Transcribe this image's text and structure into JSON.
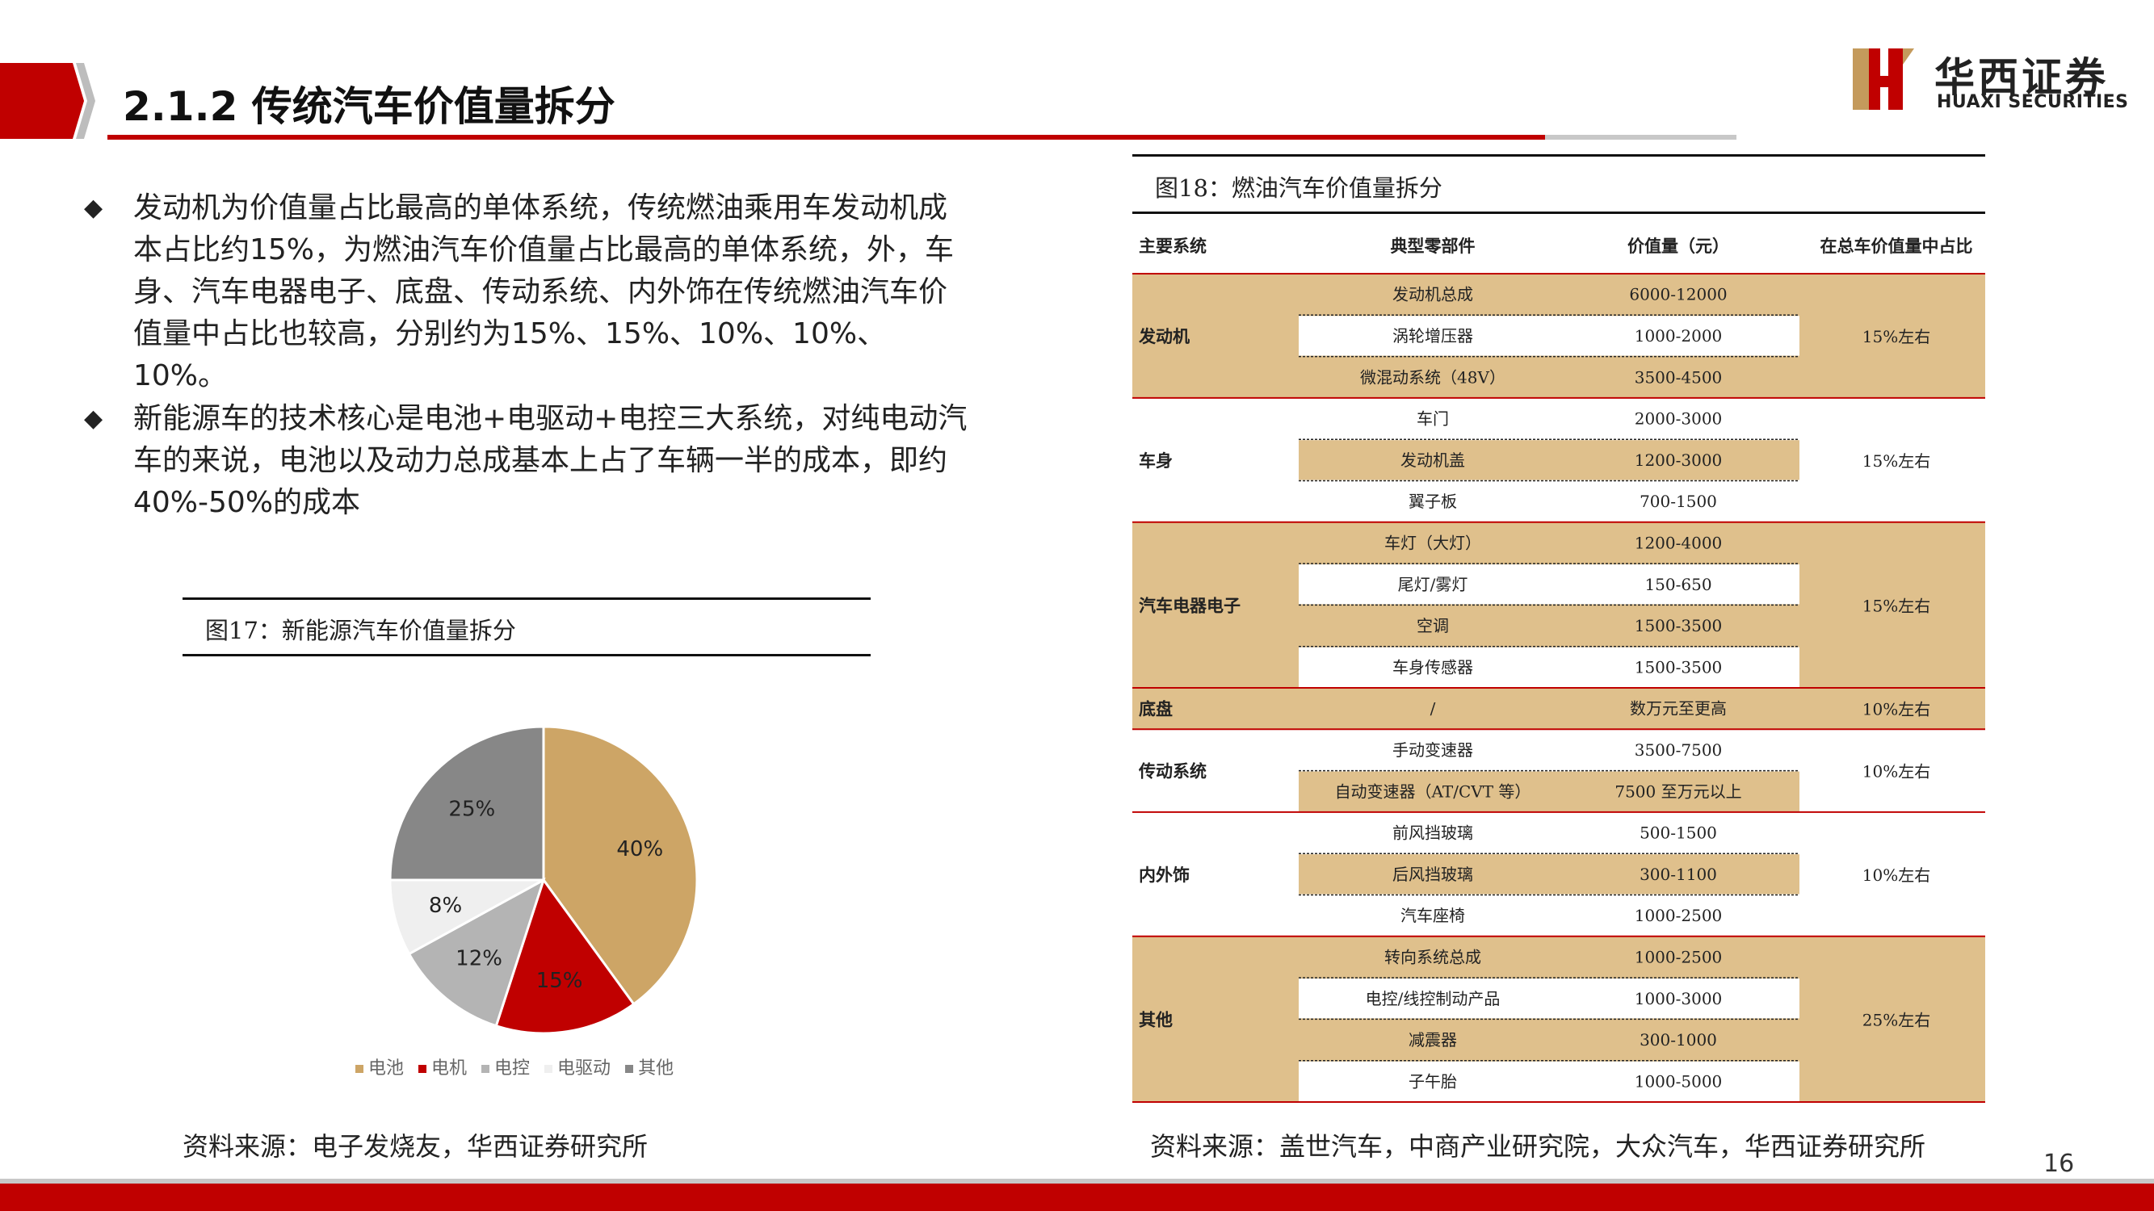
{
  "header": {
    "title": "2.1.2 传统汽车价值量拆分",
    "logo_cn": "华西证券",
    "logo_en": "HUAXI SECURITIES"
  },
  "bullets": [
    {
      "mark": "◆",
      "text": "发动机为价值量占比最高的单体系统，传统燃油乘用车发动机成本占比约15%，为燃油汽车价值量占比最高的单体系统，外，车身、汽车电器电子、底盘、传动系统、内外饰在传统燃油汽车价值量中占比也较高，分别约为15%、15%、10%、10%、10%。"
    },
    {
      "mark": "◆",
      "text": "新能源车的技术核心是电池+电驱动+电控三大系统，对纯电动汽车的来说，电池以及动力总成基本上占了车辆一半的成本，即约40%-50%的成本"
    }
  ],
  "figure17": {
    "caption": "图17：新能源汽车价值量拆分",
    "source": "资料来源：电子发烧友，华西证券研究所"
  },
  "chart_data": {
    "type": "pie",
    "categories": [
      "电池",
      "电机",
      "电控",
      "电驱动",
      "其他"
    ],
    "values": [
      40,
      15,
      12,
      8,
      25
    ],
    "data_labels": [
      "40%",
      "15%",
      "12%",
      "8%",
      "25%"
    ],
    "colors": [
      "#cda566",
      "#c00000",
      "#b4b4b4",
      "#efefef",
      "#878787"
    ],
    "legend_position": "bottom"
  },
  "figure18": {
    "caption": "图18：燃油汽车价值量拆分",
    "source": "资料来源：盖世汽车，中商产业研究院，大众汽车，华西证券研究所",
    "headers": [
      "主要系统",
      "典型零部件",
      "价值量（元）",
      "在总车价值量中占比"
    ],
    "groups": [
      {
        "system": "发动机",
        "share": "15%左右",
        "shaded": true,
        "rows": [
          [
            "发动机总成",
            "6000-12000"
          ],
          [
            "涡轮增压器",
            "1000-2000"
          ],
          [
            "微混动系统（48V）",
            "3500-4500"
          ]
        ]
      },
      {
        "system": "车身",
        "share": "15%左右",
        "shaded": false,
        "rows": [
          [
            "车门",
            "2000-3000"
          ],
          [
            "发动机盖",
            "1200-3000"
          ],
          [
            "翼子板",
            "700-1500"
          ]
        ]
      },
      {
        "system": "汽车电器电子",
        "share": "15%左右",
        "shaded": true,
        "rows": [
          [
            "车灯（大灯）",
            "1200-4000"
          ],
          [
            "尾灯/雾灯",
            "150-650"
          ],
          [
            "空调",
            "1500-3500"
          ],
          [
            "车身传感器",
            "1500-3500"
          ]
        ]
      },
      {
        "system": "底盘",
        "share": "10%左右",
        "shaded": true,
        "rows": [
          [
            "/",
            "数万元至更高"
          ]
        ]
      },
      {
        "system": "传动系统",
        "share": "10%左右",
        "shaded": false,
        "rows": [
          [
            "手动变速器",
            "3500-7500"
          ],
          [
            "自动变速器（AT/CVT 等）",
            "7500 至万元以上"
          ]
        ]
      },
      {
        "system": "内外饰",
        "share": "10%左右",
        "shaded": false,
        "rows": [
          [
            "前风挡玻璃",
            "500-1500"
          ],
          [
            "后风挡玻璃",
            "300-1100"
          ],
          [
            "汽车座椅",
            "1000-2500"
          ]
        ]
      },
      {
        "system": "其他",
        "share": "25%左右",
        "shaded": true,
        "rows": [
          [
            "转向系统总成",
            "1000-2500"
          ],
          [
            "电控/线控制动产品",
            "1000-3000"
          ],
          [
            "减震器",
            "300-1000"
          ],
          [
            "子午胎",
            "1000-5000"
          ]
        ]
      }
    ]
  },
  "footer": {
    "page_number": "16"
  },
  "colors": {
    "brand_red": "#c00000",
    "table_gold": "#dfc08c",
    "divider_grey": "#c8c8c8"
  }
}
